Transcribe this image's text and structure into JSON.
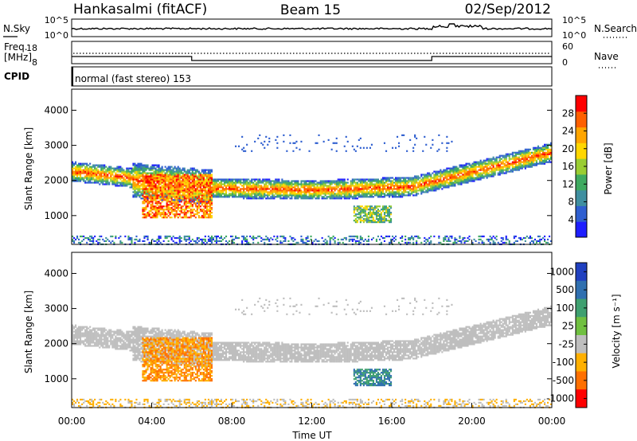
{
  "header": {
    "station": "Hankasalmi (fitACF)",
    "beam": "Beam 15",
    "date": "02/Sep/2012"
  },
  "noise_panel": {
    "left_label": "N.Sky",
    "right_label": "N.Search",
    "left_ticks": [
      "10^5",
      "10^0"
    ],
    "right_ticks": [
      "10^5",
      "10^0"
    ]
  },
  "freq_panel": {
    "left_label_1": "Freq.",
    "left_label_2": "[MHz]",
    "left_ticks": [
      "18",
      "8"
    ],
    "right_label": "Nave",
    "right_ticks": [
      "60",
      "0"
    ]
  },
  "cpid_panel": {
    "label": "CPID",
    "mode_text": "normal (fast stereo) 153"
  },
  "chart_data": [
    {
      "type": "heatmap",
      "name": "power",
      "xlabel": "",
      "ylabel": "Slant Range [km]",
      "y_ticks": [
        "1000",
        "2000",
        "3000",
        "4000"
      ],
      "ylim": [
        180,
        4600
      ],
      "colorbar_label": "Power [dB]",
      "colorbar_ticks": [
        "4",
        "8",
        "12",
        "16",
        "20",
        "24",
        "28"
      ],
      "colorbar_colors": [
        "#1e1eff",
        "#2f5fd0",
        "#3f8fa0",
        "#3faa60",
        "#9acd32",
        "#ffd700",
        "#ffa500",
        "#ff6000",
        "#ff0000"
      ],
      "features": [
        {
          "region": "main echo band 00-07 UT",
          "range_km": [
            1700,
            2400
          ],
          "level": "12-24 dB"
        },
        {
          "region": "near range band 04-07 UT",
          "range_km": [
            900,
            1800
          ],
          "level": "16-28 dB"
        },
        {
          "region": "F-region band 07-24 UT",
          "range_km": [
            1700,
            2900
          ],
          "level": "8-20 dB"
        },
        {
          "region": "14-16 UT patch",
          "range_km": [
            800,
            1300
          ],
          "level": "8-20 dB"
        }
      ]
    },
    {
      "type": "heatmap",
      "name": "velocity",
      "xlabel": "Time UT",
      "ylabel": "Slant Range [km]",
      "x_ticks": [
        "00:00",
        "04:00",
        "08:00",
        "12:00",
        "16:00",
        "20:00",
        "00:00"
      ],
      "y_ticks": [
        "1000",
        "2000",
        "3000",
        "4000"
      ],
      "ylim": [
        180,
        4600
      ],
      "colorbar_label": "Velocity [m s⁻¹]",
      "colorbar_ticks": [
        "1000",
        "500",
        "100",
        "25",
        "-25",
        "-100",
        "-500",
        "-1000"
      ],
      "colorbar_colors": [
        "#2040c0",
        "#3070b0",
        "#3fa070",
        "#70c040",
        "#bebebe",
        "#ffb000",
        "#ff7000",
        "#ff0000"
      ],
      "features": [
        {
          "region": "main echo band 00-24 UT",
          "range_km": [
            1700,
            2900
          ],
          "velocity": "-25 to 25 (ground scatter)"
        },
        {
          "region": "04-07 UT near range",
          "range_km": [
            900,
            2200
          ],
          "velocity": "-100 to -500"
        },
        {
          "region": "14-16 UT patch",
          "range_km": [
            800,
            1300
          ],
          "velocity": "100 to 500"
        }
      ]
    }
  ]
}
